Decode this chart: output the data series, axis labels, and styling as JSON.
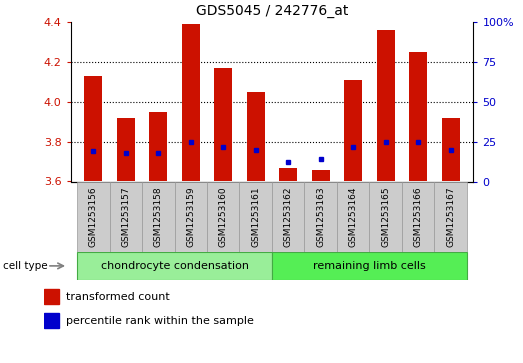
{
  "title": "GDS5045 / 242776_at",
  "samples": [
    "GSM1253156",
    "GSM1253157",
    "GSM1253158",
    "GSM1253159",
    "GSM1253160",
    "GSM1253161",
    "GSM1253162",
    "GSM1253163",
    "GSM1253164",
    "GSM1253165",
    "GSM1253166",
    "GSM1253167"
  ],
  "bar_values": [
    4.13,
    3.92,
    3.95,
    4.39,
    4.17,
    4.05,
    3.67,
    3.66,
    4.11,
    4.36,
    4.25,
    3.92
  ],
  "blue_values": [
    3.755,
    3.745,
    3.745,
    3.8,
    3.775,
    3.76,
    3.7,
    3.715,
    3.775,
    3.8,
    3.8,
    3.758
  ],
  "ylim_left": [
    3.6,
    4.4
  ],
  "ylim_right": [
    0,
    100
  ],
  "yticks_left": [
    3.6,
    3.8,
    4.0,
    4.2,
    4.4
  ],
  "yticks_right": [
    0,
    25,
    50,
    75,
    100
  ],
  "bar_color": "#CC1100",
  "blue_color": "#0000CC",
  "bar_bottom": 3.6,
  "groups": [
    {
      "label": "chondrocyte condensation",
      "start": 0,
      "end": 5,
      "color": "#99ee99"
    },
    {
      "label": "remaining limb cells",
      "start": 6,
      "end": 11,
      "color": "#55ee55"
    }
  ],
  "cell_type_label": "cell type",
  "legend_red": "transformed count",
  "legend_blue": "percentile rank within the sample",
  "title_fontsize": 10,
  "axis_label_color_left": "#CC1100",
  "axis_label_color_right": "#0000CC",
  "sample_box_color": "#cccccc",
  "sample_box_edge": "#999999",
  "grid_lines": [
    3.8,
    4.0,
    4.2
  ],
  "bar_width": 0.55
}
